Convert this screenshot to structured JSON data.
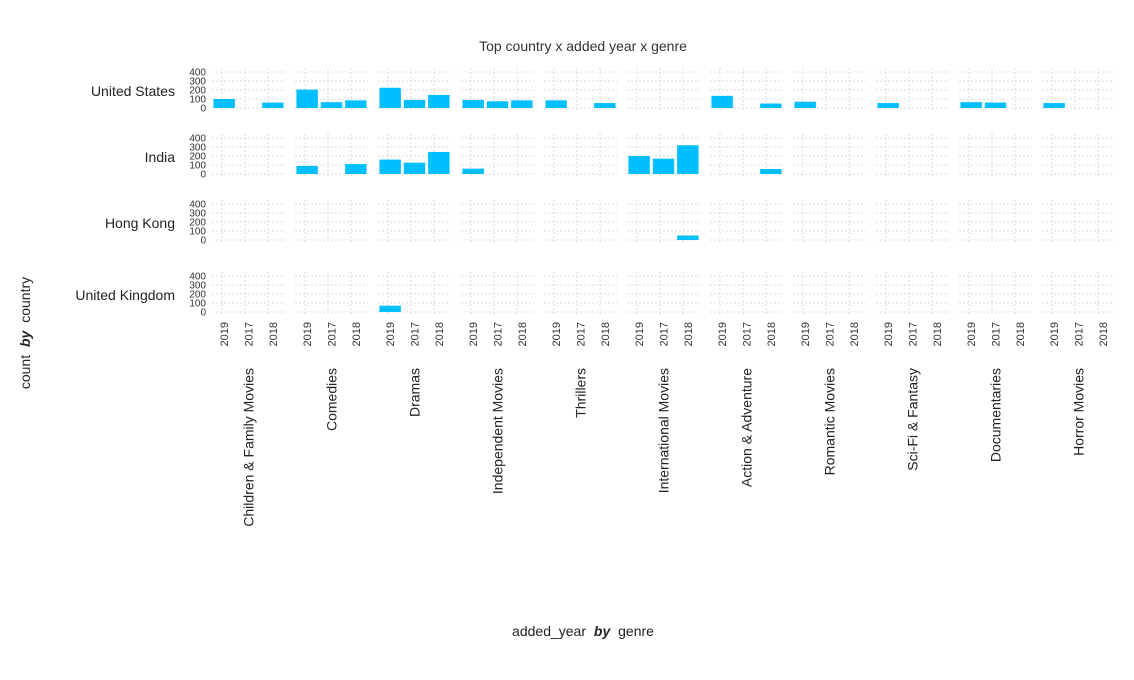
{
  "chart_data": {
    "type": "bar",
    "title": "Top country x added year x genre",
    "xlabel": {
      "left": "added_year",
      "by": "by",
      "right": "genre"
    },
    "ylabel": {
      "left": "count",
      "by": "by",
      "right": "country"
    },
    "bar_color": "#00bfff",
    "ylim": [
      0,
      400
    ],
    "yticks": [
      "0",
      "100",
      "200",
      "300",
      "400"
    ],
    "years": [
      "2019",
      "2017",
      "2018"
    ],
    "genres": [
      "Children & Family Movies",
      "Comedies",
      "Dramas",
      "Independent Movies",
      "Thrillers",
      "International Movies",
      "Action & Adventure",
      "Romantic Movies",
      "Sci-Fi & Fantasy",
      "Documentaries",
      "Horror Movies"
    ],
    "countries": [
      "United States",
      "India",
      "Hong Kong",
      "United Kingdom"
    ],
    "values": {
      "United States": [
        [
          100,
          0,
          60
        ],
        [
          205,
          65,
          85
        ],
        [
          225,
          90,
          145
        ],
        [
          90,
          75,
          85
        ],
        [
          85,
          0,
          55
        ],
        [
          0,
          0,
          0
        ],
        [
          135,
          0,
          50
        ],
        [
          70,
          0,
          0
        ],
        [
          55,
          0,
          0
        ],
        [
          65,
          60,
          0
        ],
        [
          55,
          0,
          0
        ]
      ],
      "India": [
        [
          0,
          0,
          0
        ],
        [
          90,
          0,
          110
        ],
        [
          160,
          125,
          245
        ],
        [
          60,
          0,
          0
        ],
        [
          0,
          0,
          0
        ],
        [
          200,
          170,
          320
        ],
        [
          0,
          0,
          55
        ],
        [
          0,
          0,
          0
        ],
        [
          0,
          0,
          0
        ],
        [
          0,
          0,
          0
        ],
        [
          0,
          0,
          0
        ]
      ],
      "Hong Kong": [
        [
          0,
          0,
          0
        ],
        [
          0,
          0,
          0
        ],
        [
          0,
          0,
          0
        ],
        [
          0,
          0,
          0
        ],
        [
          0,
          0,
          0
        ],
        [
          0,
          0,
          50
        ],
        [
          0,
          0,
          0
        ],
        [
          0,
          0,
          0
        ],
        [
          0,
          0,
          0
        ],
        [
          0,
          0,
          0
        ],
        [
          0,
          0,
          0
        ]
      ],
      "United Kingdom": [
        [
          0,
          0,
          0
        ],
        [
          0,
          0,
          0
        ],
        [
          70,
          0,
          0
        ],
        [
          0,
          0,
          0
        ],
        [
          0,
          0,
          0
        ],
        [
          0,
          0,
          0
        ],
        [
          0,
          0,
          0
        ],
        [
          0,
          0,
          0
        ],
        [
          0,
          0,
          0
        ],
        [
          0,
          0,
          0
        ],
        [
          0,
          0,
          0
        ]
      ]
    },
    "grid": true,
    "legend": "none"
  }
}
